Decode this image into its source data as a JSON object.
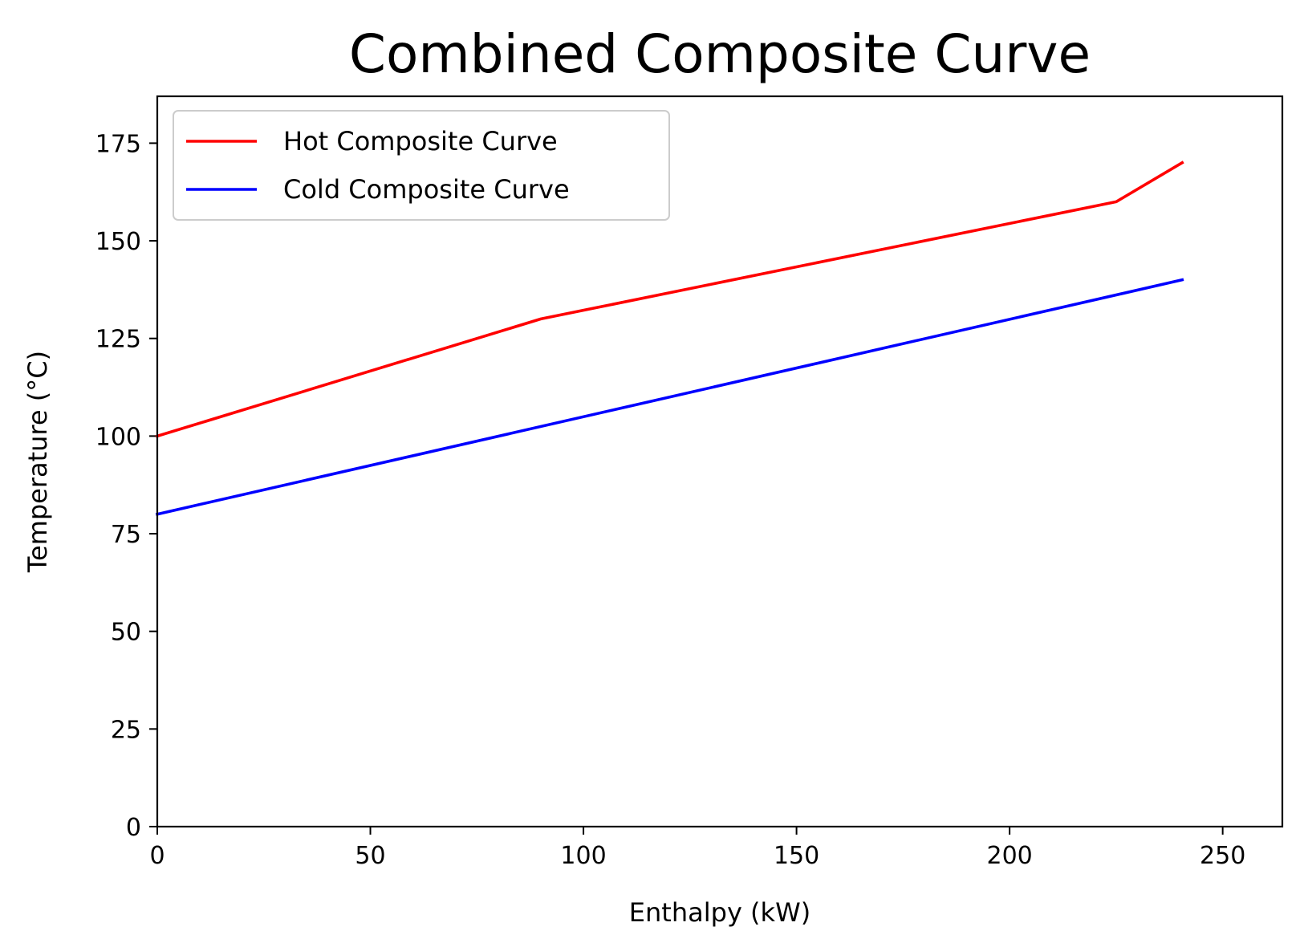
{
  "chart_data": {
    "type": "line",
    "title": "Combined Composite Curve",
    "xlabel": "Enthalpy (kW)",
    "ylabel": "Temperature (°C)",
    "xlim": [
      0,
      264
    ],
    "ylim": [
      0,
      187
    ],
    "xticks": [
      0,
      50,
      100,
      150,
      200,
      250
    ],
    "yticks": [
      0,
      25,
      50,
      75,
      100,
      125,
      150,
      175
    ],
    "grid": false,
    "legend_position": "upper-left",
    "series": [
      {
        "name": "Hot Composite Curve",
        "color": "#ff0000",
        "x": [
          0,
          90,
          225,
          240.5
        ],
        "y": [
          100,
          130,
          160,
          170
        ]
      },
      {
        "name": "Cold Composite Curve",
        "color": "#0000ff",
        "x": [
          0,
          240.5
        ],
        "y": [
          80,
          140
        ]
      }
    ]
  }
}
